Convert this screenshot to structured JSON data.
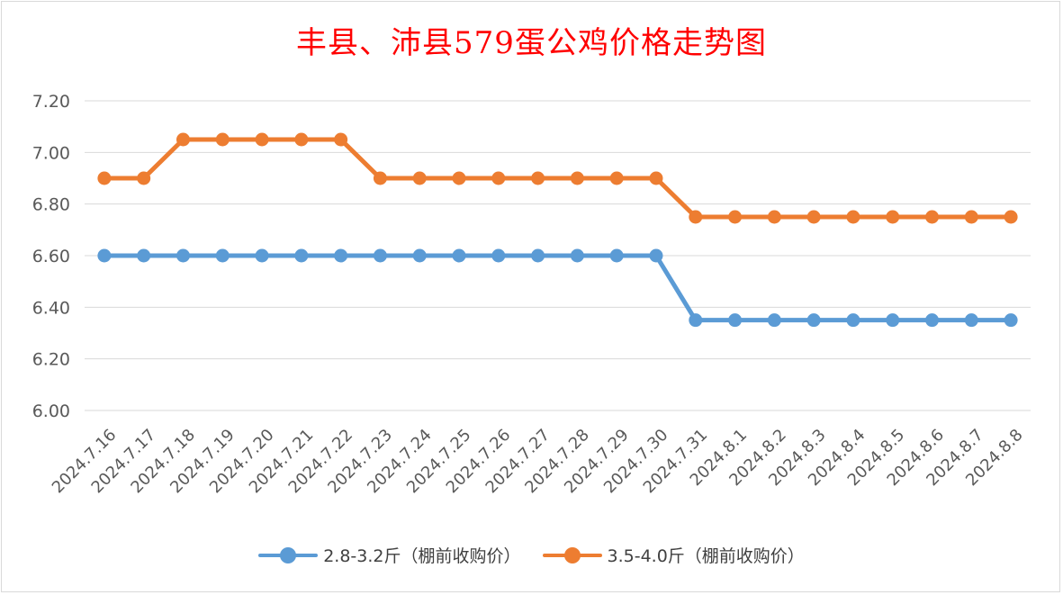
{
  "chart_data": {
    "type": "line",
    "title": "丰县、沛县579蛋公鸡价格走势图",
    "categories": [
      "2024.7.16",
      "2024.7.17",
      "2024.7.18",
      "2024.7.19",
      "2024.7.20",
      "2024.7.21",
      "2024.7.22",
      "2024.7.23",
      "2024.7.24",
      "2024.7.25",
      "2024.7.26",
      "2024.7.27",
      "2024.7.28",
      "2024.7.29",
      "2024.7.30",
      "2024.7.31",
      "2024.8.1",
      "2024.8.2",
      "2024.8.3",
      "2024.8.4",
      "2024.8.5",
      "2024.8.6",
      "2024.8.7",
      "2024.8.8"
    ],
    "series": [
      {
        "name": "2.8-3.2斤（棚前收购价）",
        "color": "#5b9bd5",
        "values": [
          6.6,
          6.6,
          6.6,
          6.6,
          6.6,
          6.6,
          6.6,
          6.6,
          6.6,
          6.6,
          6.6,
          6.6,
          6.6,
          6.6,
          6.6,
          6.35,
          6.35,
          6.35,
          6.35,
          6.35,
          6.35,
          6.35,
          6.35,
          6.35
        ]
      },
      {
        "name": "3.5-4.0斤（棚前收购价）",
        "color": "#ed7d31",
        "values": [
          6.9,
          6.9,
          7.05,
          7.05,
          7.05,
          7.05,
          7.05,
          6.9,
          6.9,
          6.9,
          6.9,
          6.9,
          6.9,
          6.9,
          6.9,
          6.75,
          6.75,
          6.75,
          6.75,
          6.75,
          6.75,
          6.75,
          6.75,
          6.75
        ]
      }
    ],
    "ylim": [
      6.0,
      7.2
    ],
    "yticks": [
      "6.00",
      "6.20",
      "6.40",
      "6.60",
      "6.80",
      "7.00",
      "7.20"
    ],
    "grid": true,
    "legend": "bottom"
  }
}
